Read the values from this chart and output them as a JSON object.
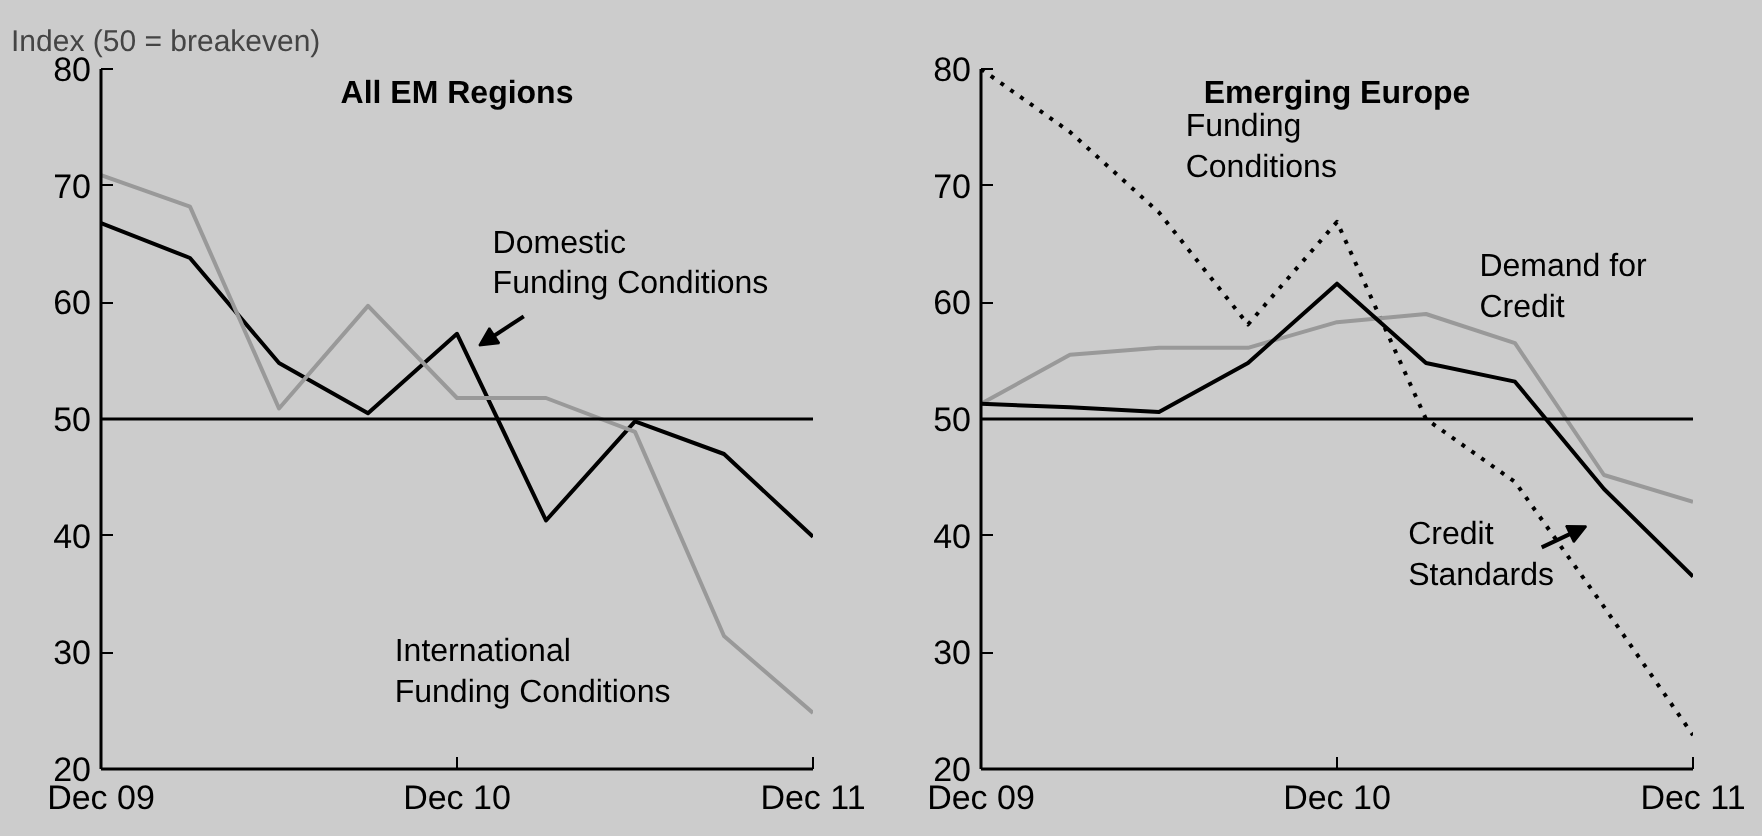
{
  "chart_data": [
    {
      "type": "line",
      "title": "All EM Regions",
      "ylabel": "Index (50 = breakeven)",
      "categories": [
        "Dec 09",
        null,
        null,
        null,
        "Dec 10",
        null,
        null,
        null,
        "Dec 11"
      ],
      "ylim": [
        20,
        80
      ],
      "yticks": [
        20,
        30,
        40,
        50,
        60,
        70,
        80
      ],
      "grid": false,
      "series": [
        {
          "name": "Domestic Funding Conditions",
          "color": "#000000",
          "line_style": "solid",
          "values": [
            66.8,
            63.8,
            54.8,
            50.5,
            57.3,
            41.3,
            49.8,
            47.0,
            39.9
          ]
        },
        {
          "name": "International Funding Conditions",
          "color": "#999999",
          "line_style": "solid",
          "values": [
            70.9,
            68.2,
            50.9,
            59.7,
            51.8,
            51.8,
            48.9,
            31.4,
            24.8
          ]
        }
      ],
      "ref_lines": [
        {
          "axis": "y",
          "value": 50,
          "label": null,
          "color": "#000000"
        }
      ]
    },
    {
      "type": "line",
      "title": "Emerging Europe",
      "categories": [
        "Dec 09",
        null,
        null,
        null,
        "Dec 10",
        null,
        null,
        null,
        "Dec 11"
      ],
      "ylim": [
        20,
        80
      ],
      "yticks": [
        20,
        30,
        40,
        50,
        60,
        70,
        80
      ],
      "grid": false,
      "series": [
        {
          "name": "Funding Conditions",
          "color": "#000000",
          "line_style": "dotted",
          "values": [
            80.0,
            74.6,
            67.7,
            58.1,
            66.9,
            50.0,
            44.6,
            33.9,
            22.9
          ]
        },
        {
          "name": "Demand for Credit",
          "color": "#999999",
          "line_style": "solid",
          "values": [
            51.3,
            55.5,
            56.1,
            56.1,
            58.3,
            59.0,
            56.5,
            45.2,
            42.9
          ]
        },
        {
          "name": "Credit Standards",
          "color": "#000000",
          "line_style": "solid",
          "values": [
            51.3,
            51.0,
            50.6,
            54.8,
            61.6,
            54.8,
            53.2,
            44.0,
            36.5
          ]
        }
      ],
      "ref_lines": [
        {
          "axis": "y",
          "value": 50,
          "label": null,
          "color": "#000000"
        }
      ]
    }
  ]
}
